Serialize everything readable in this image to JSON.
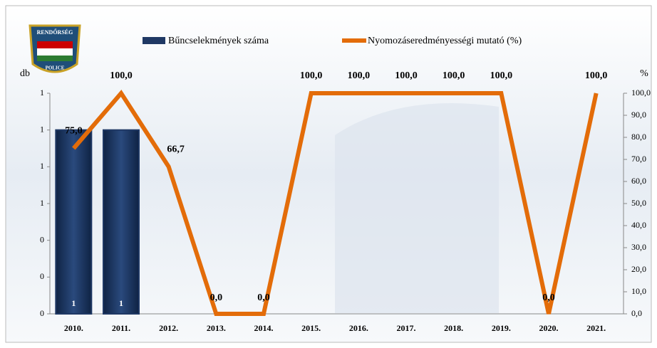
{
  "logo": {
    "top": "RENDŐRSÉG",
    "bottom": "POLICE"
  },
  "chart_data": {
    "type": "bar-line",
    "categories": [
      "2010.",
      "2011.",
      "2012.",
      "2013.",
      "2014.",
      "2015.",
      "2016.",
      "2017.",
      "2018.",
      "2019.",
      "2020.",
      "2021."
    ],
    "y_label": "db",
    "y2_label": "%",
    "series": [
      {
        "name": "Bűncselekmények száma",
        "type": "bar",
        "color": "#1f3864",
        "values": [
          1,
          1,
          null,
          null,
          null,
          null,
          null,
          null,
          null,
          null,
          null,
          null
        ]
      },
      {
        "name": "Nyomozáseredményességi mutató (%)",
        "type": "line",
        "axis": "y2",
        "color": "#e36c09",
        "values": [
          75,
          100,
          66.7,
          0,
          0,
          100,
          100,
          100,
          100,
          100,
          0,
          100
        ],
        "value_labels": [
          "75,0",
          "100,0",
          "66,7",
          "0,0",
          "0,0",
          "100,0",
          "100,0",
          "100,0",
          "100,0",
          "100,0",
          "0,0",
          "100,0"
        ]
      }
    ],
    "ylim": [
      0,
      1.2
    ],
    "yticks": [
      {
        "value": 0,
        "label": "0"
      },
      {
        "value": 0.2,
        "label": "0"
      },
      {
        "value": 0.4,
        "label": "0"
      },
      {
        "value": 0.6,
        "label": "1"
      },
      {
        "value": 0.8,
        "label": "1"
      },
      {
        "value": 1,
        "label": "1"
      },
      {
        "value": 1.2,
        "label": "1"
      }
    ],
    "y2lim": [
      0,
      100
    ],
    "y2ticks": [
      {
        "value": 0,
        "label": "0,0"
      },
      {
        "value": 10,
        "label": "10,0"
      },
      {
        "value": 20,
        "label": "20,0"
      },
      {
        "value": 30,
        "label": "30,0"
      },
      {
        "value": 40,
        "label": "40,0"
      },
      {
        "value": 50,
        "label": "50,0"
      },
      {
        "value": 60,
        "label": "60,0"
      },
      {
        "value": 70,
        "label": "70,0"
      },
      {
        "value": 80,
        "label": "80,0"
      },
      {
        "value": 90,
        "label": "90,0"
      },
      {
        "value": 100,
        "label": "100,0"
      }
    ]
  }
}
